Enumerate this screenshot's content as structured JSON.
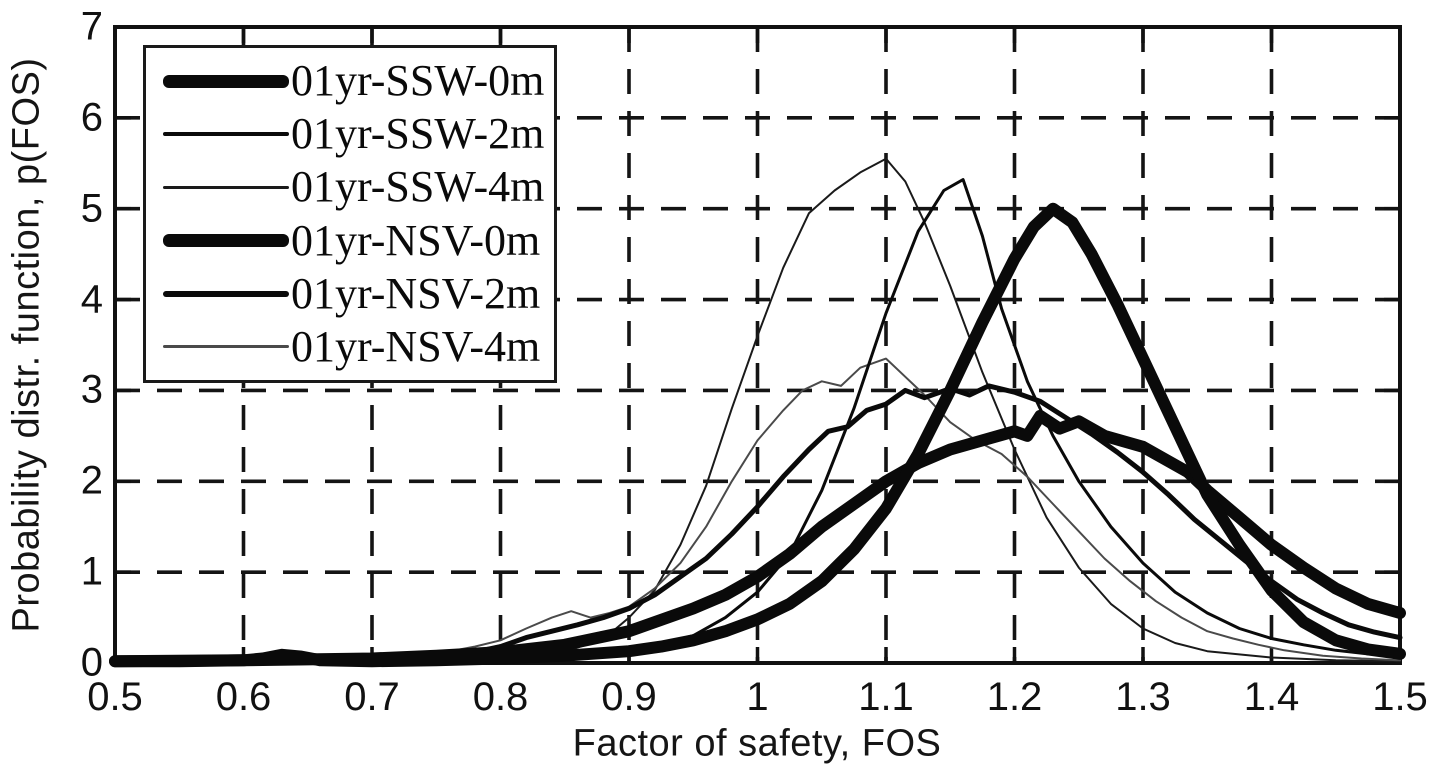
{
  "chart_data": {
    "type": "line",
    "title": "",
    "xlabel": "Factor of safety, FOS",
    "ylabel": "Probability distr. function, p(FOS)",
    "xlim": [
      0.5,
      1.5
    ],
    "ylim": [
      0,
      7
    ],
    "x_ticks": [
      0.5,
      0.6,
      0.7,
      0.8,
      0.9,
      1.0,
      1.1,
      1.2,
      1.3,
      1.4,
      1.5
    ],
    "x_tick_labels": [
      "0.5",
      "0.6",
      "0.7",
      "0.8",
      "0.9",
      "1",
      "1.1",
      "1.2",
      "1.3",
      "1.4",
      "1.5"
    ],
    "y_ticks": [
      0,
      1,
      2,
      3,
      4,
      5,
      6,
      7
    ],
    "y_tick_labels": [
      "0",
      "1",
      "2",
      "3",
      "4",
      "5",
      "6",
      "7"
    ],
    "grid": "dashed",
    "grid_color": "#141414",
    "axis_color": "#111111",
    "legend_position": "top-left",
    "series": [
      {
        "name": "01yr-SSW-4m",
        "line_width": 2,
        "color": "#1a1a1a",
        "peak": {
          "x": 1.1,
          "y": 5.55
        },
        "points": [
          [
            0.5,
            0.01
          ],
          [
            0.6,
            0.01
          ],
          [
            0.7,
            0.02
          ],
          [
            0.78,
            0.03
          ],
          [
            0.82,
            0.06
          ],
          [
            0.85,
            0.12
          ],
          [
            0.87,
            0.22
          ],
          [
            0.885,
            0.32
          ],
          [
            0.9,
            0.5
          ],
          [
            0.92,
            0.8
          ],
          [
            0.94,
            1.3
          ],
          [
            0.96,
            1.95
          ],
          [
            0.98,
            2.8
          ],
          [
            1.0,
            3.6
          ],
          [
            1.02,
            4.35
          ],
          [
            1.04,
            4.95
          ],
          [
            1.06,
            5.2
          ],
          [
            1.08,
            5.4
          ],
          [
            1.1,
            5.55
          ],
          [
            1.115,
            5.3
          ],
          [
            1.13,
            4.85
          ],
          [
            1.15,
            4.15
          ],
          [
            1.175,
            3.2
          ],
          [
            1.2,
            2.35
          ],
          [
            1.225,
            1.6
          ],
          [
            1.25,
            1.05
          ],
          [
            1.275,
            0.65
          ],
          [
            1.3,
            0.38
          ],
          [
            1.325,
            0.22
          ],
          [
            1.35,
            0.13
          ],
          [
            1.4,
            0.06
          ],
          [
            1.45,
            0.03
          ],
          [
            1.5,
            0.02
          ]
        ]
      },
      {
        "name": "01yr-NSV-4m",
        "line_width": 2,
        "color": "#4a4a4a",
        "peak": {
          "x": 1.1,
          "y": 3.35
        },
        "points": [
          [
            0.5,
            0.01
          ],
          [
            0.6,
            0.02
          ],
          [
            0.68,
            0.03
          ],
          [
            0.72,
            0.05
          ],
          [
            0.75,
            0.1
          ],
          [
            0.78,
            0.18
          ],
          [
            0.8,
            0.25
          ],
          [
            0.82,
            0.38
          ],
          [
            0.84,
            0.5
          ],
          [
            0.855,
            0.57
          ],
          [
            0.87,
            0.5
          ],
          [
            0.885,
            0.55
          ],
          [
            0.9,
            0.62
          ],
          [
            0.92,
            0.82
          ],
          [
            0.94,
            1.1
          ],
          [
            0.96,
            1.5
          ],
          [
            0.98,
            2.0
          ],
          [
            1.0,
            2.45
          ],
          [
            1.02,
            2.78
          ],
          [
            1.035,
            3.0
          ],
          [
            1.05,
            3.1
          ],
          [
            1.065,
            3.05
          ],
          [
            1.08,
            3.25
          ],
          [
            1.1,
            3.35
          ],
          [
            1.115,
            3.15
          ],
          [
            1.13,
            2.95
          ],
          [
            1.15,
            2.65
          ],
          [
            1.17,
            2.45
          ],
          [
            1.19,
            2.3
          ],
          [
            1.21,
            2.05
          ],
          [
            1.23,
            1.75
          ],
          [
            1.25,
            1.45
          ],
          [
            1.27,
            1.15
          ],
          [
            1.29,
            0.9
          ],
          [
            1.31,
            0.68
          ],
          [
            1.33,
            0.5
          ],
          [
            1.35,
            0.35
          ],
          [
            1.37,
            0.27
          ],
          [
            1.39,
            0.2
          ],
          [
            1.41,
            0.14
          ],
          [
            1.44,
            0.08
          ],
          [
            1.47,
            0.05
          ],
          [
            1.5,
            0.03
          ]
        ]
      },
      {
        "name": "01yr-SSW-2m",
        "line_width": 3,
        "color": "#0a0a0a",
        "peak": {
          "x": 1.16,
          "y": 5.3
        },
        "points": [
          [
            0.5,
            0.01
          ],
          [
            0.6,
            0.01
          ],
          [
            0.7,
            0.02
          ],
          [
            0.8,
            0.04
          ],
          [
            0.85,
            0.07
          ],
          [
            0.9,
            0.12
          ],
          [
            0.95,
            0.3
          ],
          [
            0.975,
            0.5
          ],
          [
            1.0,
            0.78
          ],
          [
            1.025,
            1.2
          ],
          [
            1.05,
            1.9
          ],
          [
            1.075,
            2.8
          ],
          [
            1.1,
            3.85
          ],
          [
            1.125,
            4.75
          ],
          [
            1.145,
            5.2
          ],
          [
            1.16,
            5.32
          ],
          [
            1.175,
            4.7
          ],
          [
            1.19,
            3.9
          ],
          [
            1.21,
            3.1
          ],
          [
            1.23,
            2.5
          ],
          [
            1.25,
            2.0
          ],
          [
            1.275,
            1.5
          ],
          [
            1.3,
            1.1
          ],
          [
            1.325,
            0.78
          ],
          [
            1.35,
            0.55
          ],
          [
            1.375,
            0.38
          ],
          [
            1.4,
            0.27
          ],
          [
            1.425,
            0.2
          ],
          [
            1.45,
            0.14
          ],
          [
            1.475,
            0.1
          ],
          [
            1.5,
            0.08
          ]
        ]
      },
      {
        "name": "01yr-NSV-2m",
        "line_width": 5,
        "color": "#0a0a0a",
        "peak": {
          "x": 1.15,
          "y": 3.0
        },
        "points": [
          [
            0.5,
            0.01
          ],
          [
            0.6,
            0.02
          ],
          [
            0.7,
            0.04
          ],
          [
            0.75,
            0.07
          ],
          [
            0.78,
            0.12
          ],
          [
            0.8,
            0.18
          ],
          [
            0.82,
            0.28
          ],
          [
            0.84,
            0.35
          ],
          [
            0.86,
            0.42
          ],
          [
            0.88,
            0.5
          ],
          [
            0.9,
            0.6
          ],
          [
            0.92,
            0.75
          ],
          [
            0.94,
            0.95
          ],
          [
            0.96,
            1.15
          ],
          [
            0.98,
            1.42
          ],
          [
            1.0,
            1.72
          ],
          [
            1.02,
            2.05
          ],
          [
            1.04,
            2.35
          ],
          [
            1.055,
            2.55
          ],
          [
            1.07,
            2.6
          ],
          [
            1.085,
            2.78
          ],
          [
            1.1,
            2.85
          ],
          [
            1.115,
            3.0
          ],
          [
            1.13,
            2.92
          ],
          [
            1.15,
            3.02
          ],
          [
            1.165,
            2.95
          ],
          [
            1.18,
            3.05
          ],
          [
            1.2,
            2.98
          ],
          [
            1.22,
            2.88
          ],
          [
            1.24,
            2.7
          ],
          [
            1.26,
            2.52
          ],
          [
            1.28,
            2.32
          ],
          [
            1.3,
            2.1
          ],
          [
            1.32,
            1.85
          ],
          [
            1.34,
            1.58
          ],
          [
            1.36,
            1.35
          ],
          [
            1.38,
            1.12
          ],
          [
            1.4,
            0.9
          ],
          [
            1.42,
            0.7
          ],
          [
            1.44,
            0.55
          ],
          [
            1.46,
            0.42
          ],
          [
            1.48,
            0.34
          ],
          [
            1.5,
            0.28
          ]
        ]
      },
      {
        "name": "01yr-NSV-0m",
        "line_width": 12,
        "color": "#0a0a0a",
        "peak": {
          "x": 1.22,
          "y": 2.7
        },
        "points": [
          [
            0.5,
            0.02
          ],
          [
            0.6,
            0.03
          ],
          [
            0.65,
            0.04
          ],
          [
            0.7,
            0.05
          ],
          [
            0.75,
            0.08
          ],
          [
            0.8,
            0.12
          ],
          [
            0.85,
            0.2
          ],
          [
            0.9,
            0.35
          ],
          [
            0.95,
            0.6
          ],
          [
            0.975,
            0.75
          ],
          [
            1.0,
            0.95
          ],
          [
            1.025,
            1.2
          ],
          [
            1.05,
            1.5
          ],
          [
            1.075,
            1.75
          ],
          [
            1.1,
            2.0
          ],
          [
            1.125,
            2.2
          ],
          [
            1.15,
            2.35
          ],
          [
            1.175,
            2.45
          ],
          [
            1.2,
            2.55
          ],
          [
            1.21,
            2.5
          ],
          [
            1.22,
            2.72
          ],
          [
            1.235,
            2.58
          ],
          [
            1.25,
            2.66
          ],
          [
            1.27,
            2.5
          ],
          [
            1.3,
            2.38
          ],
          [
            1.32,
            2.22
          ],
          [
            1.335,
            2.1
          ],
          [
            1.35,
            1.9
          ],
          [
            1.375,
            1.6
          ],
          [
            1.4,
            1.3
          ],
          [
            1.425,
            1.05
          ],
          [
            1.45,
            0.82
          ],
          [
            1.475,
            0.65
          ],
          [
            1.5,
            0.55
          ]
        ]
      },
      {
        "name": "01yr-SSW-0m",
        "line_width": 12,
        "color": "#0a0a0a",
        "peak": {
          "x": 1.23,
          "y": 5.0
        },
        "points": [
          [
            0.5,
            0.02
          ],
          [
            0.55,
            0.02
          ],
          [
            0.6,
            0.03
          ],
          [
            0.615,
            0.05
          ],
          [
            0.63,
            0.09
          ],
          [
            0.645,
            0.07
          ],
          [
            0.66,
            0.03
          ],
          [
            0.7,
            0.02
          ],
          [
            0.75,
            0.03
          ],
          [
            0.8,
            0.05
          ],
          [
            0.85,
            0.08
          ],
          [
            0.9,
            0.13
          ],
          [
            0.925,
            0.18
          ],
          [
            0.95,
            0.25
          ],
          [
            0.975,
            0.35
          ],
          [
            1.0,
            0.48
          ],
          [
            1.025,
            0.65
          ],
          [
            1.05,
            0.9
          ],
          [
            1.075,
            1.25
          ],
          [
            1.1,
            1.7
          ],
          [
            1.125,
            2.3
          ],
          [
            1.15,
            3.0
          ],
          [
            1.175,
            3.75
          ],
          [
            1.2,
            4.45
          ],
          [
            1.215,
            4.8
          ],
          [
            1.23,
            5.0
          ],
          [
            1.245,
            4.85
          ],
          [
            1.26,
            4.5
          ],
          [
            1.28,
            3.95
          ],
          [
            1.3,
            3.35
          ],
          [
            1.32,
            2.75
          ],
          [
            1.335,
            2.3
          ],
          [
            1.35,
            1.85
          ],
          [
            1.375,
            1.3
          ],
          [
            1.4,
            0.8
          ],
          [
            1.425,
            0.45
          ],
          [
            1.45,
            0.25
          ],
          [
            1.475,
            0.15
          ],
          [
            1.5,
            0.1
          ]
        ]
      }
    ],
    "legend_order": [
      "01yr-SSW-0m",
      "01yr-SSW-2m",
      "01yr-SSW-4m",
      "01yr-NSV-0m",
      "01yr-NSV-2m",
      "01yr-NSV-4m"
    ]
  }
}
